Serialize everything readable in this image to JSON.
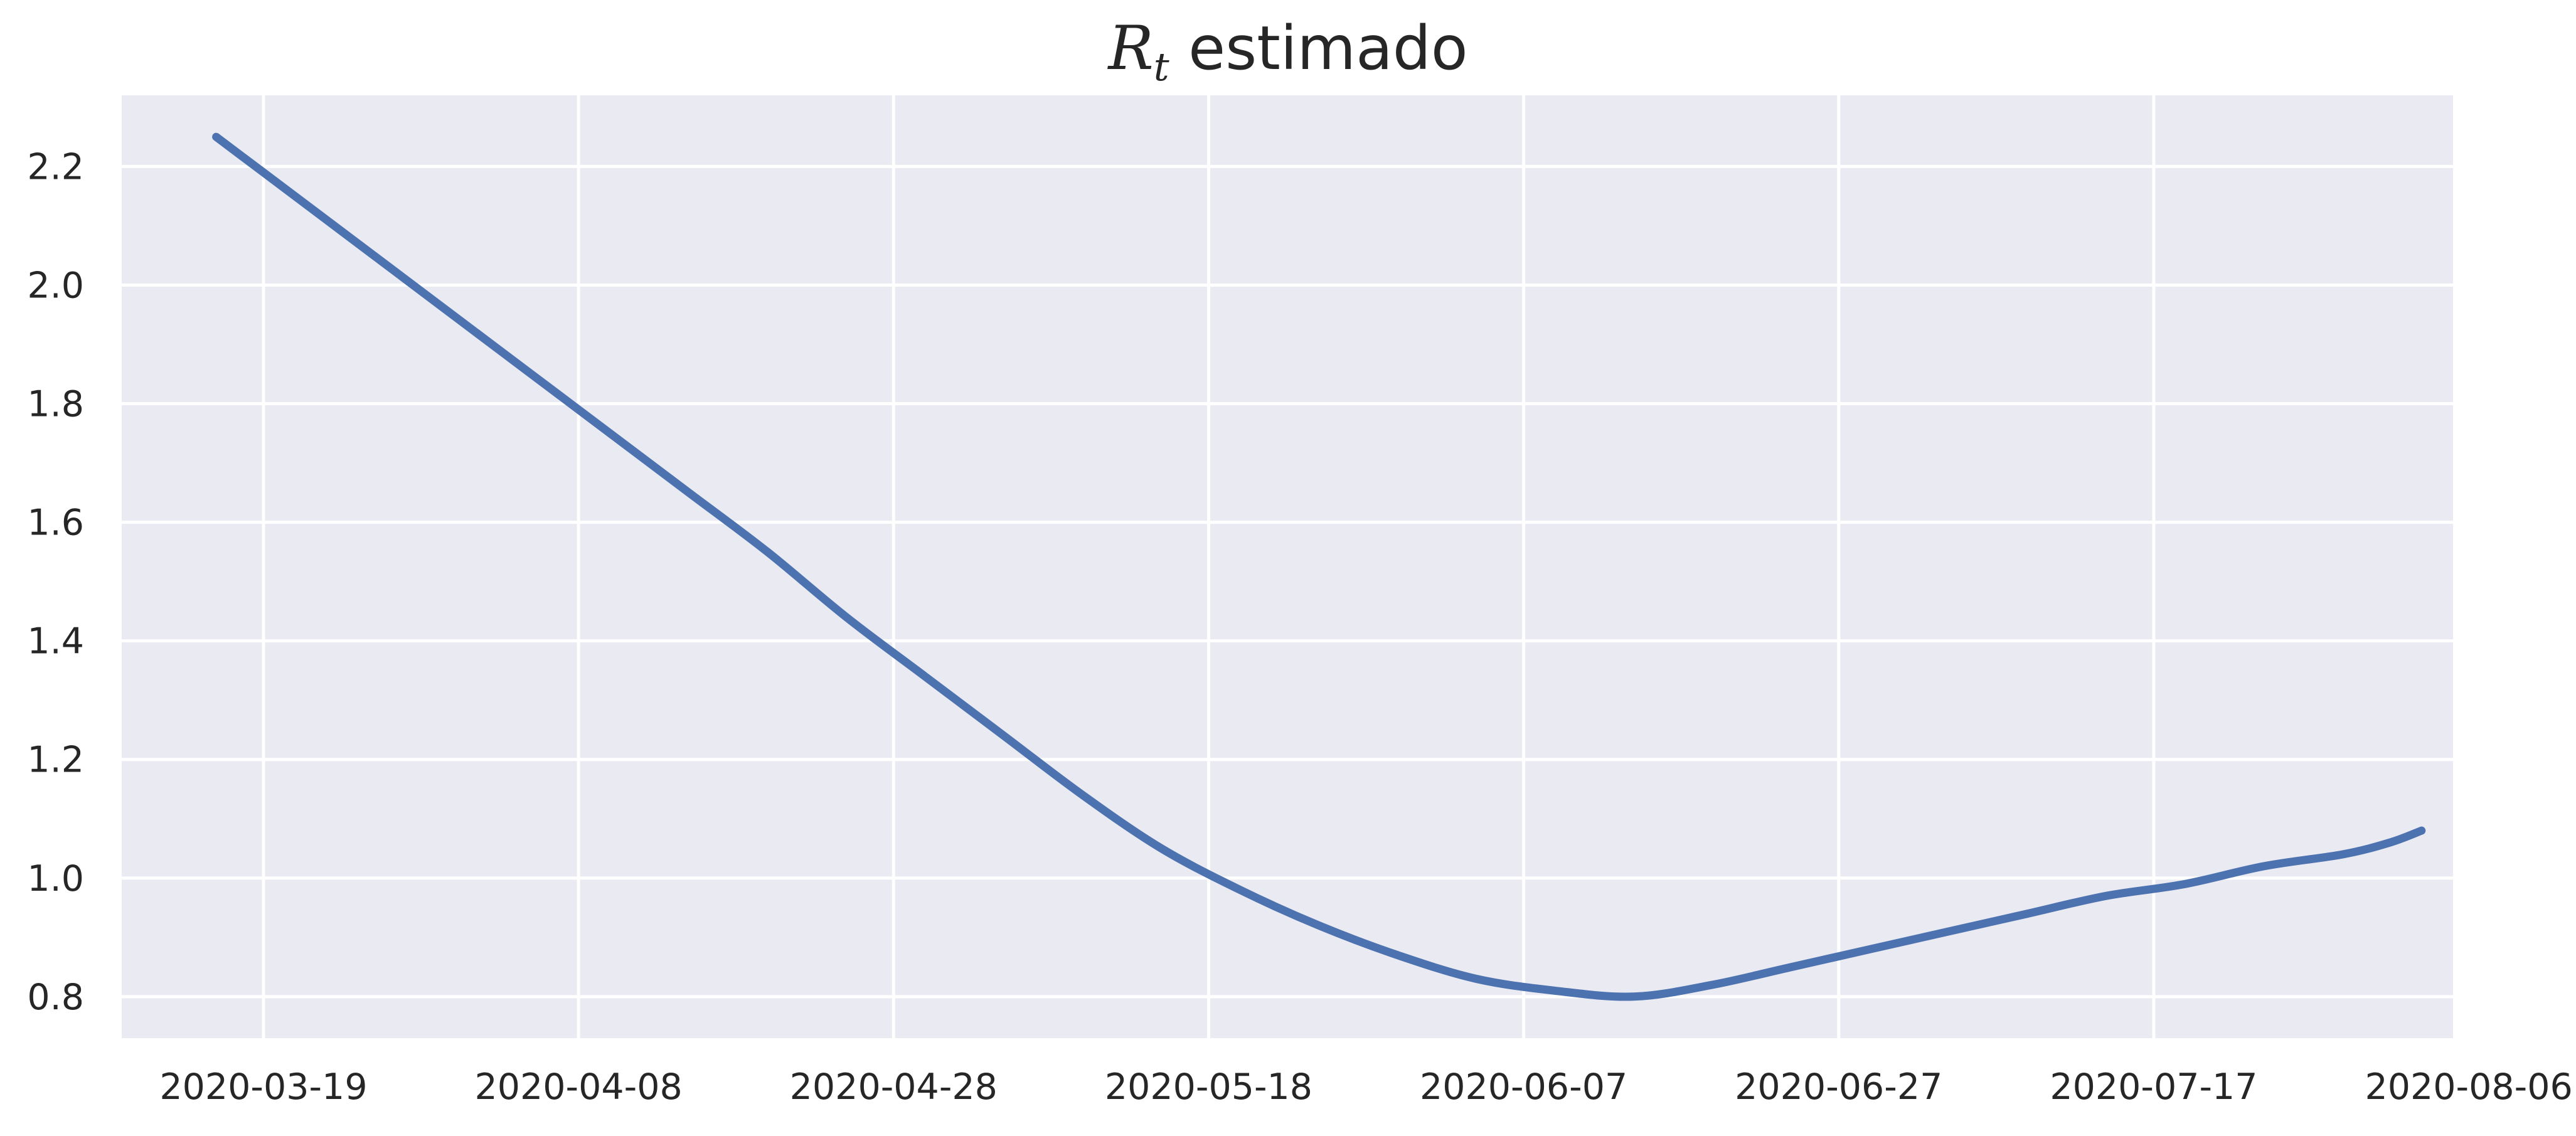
{
  "chart_data": {
    "type": "line",
    "title": {
      "symbol": "R",
      "subscript": "t",
      "text": " estimado"
    },
    "xlabel": "",
    "ylabel": "",
    "x_axis": {
      "type": "date",
      "range": [
        "2020-03-10",
        "2020-08-05"
      ],
      "ticks": [
        "2020-03-19",
        "2020-04-08",
        "2020-04-28",
        "2020-05-18",
        "2020-06-07",
        "2020-06-27",
        "2020-07-17",
        "2020-08-06"
      ]
    },
    "y_axis": {
      "range": [
        0.73,
        2.32
      ],
      "ticks": [
        0.8,
        1.0,
        1.2,
        1.4,
        1.6,
        1.8,
        2.0,
        2.2
      ]
    },
    "grid": true,
    "legend": false,
    "background_color": "#eaeaf2",
    "grid_color": "#ffffff",
    "series": [
      {
        "color": "#4c72b0",
        "points": [
          {
            "x": "2020-03-16",
            "y": 2.25
          },
          {
            "x": "2020-03-21",
            "y": 2.15
          },
          {
            "x": "2020-03-26",
            "y": 2.05
          },
          {
            "x": "2020-03-31",
            "y": 1.95
          },
          {
            "x": "2020-04-05",
            "y": 1.85
          },
          {
            "x": "2020-04-10",
            "y": 1.75
          },
          {
            "x": "2020-04-15",
            "y": 1.65
          },
          {
            "x": "2020-04-20",
            "y": 1.55
          },
          {
            "x": "2020-04-25",
            "y": 1.44
          },
          {
            "x": "2020-04-30",
            "y": 1.34
          },
          {
            "x": "2020-05-05",
            "y": 1.24
          },
          {
            "x": "2020-05-10",
            "y": 1.14
          },
          {
            "x": "2020-05-15",
            "y": 1.05
          },
          {
            "x": "2020-05-20",
            "y": 0.98
          },
          {
            "x": "2020-05-25",
            "y": 0.92
          },
          {
            "x": "2020-05-30",
            "y": 0.87
          },
          {
            "x": "2020-06-04",
            "y": 0.83
          },
          {
            "x": "2020-06-09",
            "y": 0.81
          },
          {
            "x": "2020-06-14",
            "y": 0.8
          },
          {
            "x": "2020-06-19",
            "y": 0.82
          },
          {
            "x": "2020-06-24",
            "y": 0.85
          },
          {
            "x": "2020-06-29",
            "y": 0.88
          },
          {
            "x": "2020-07-04",
            "y": 0.91
          },
          {
            "x": "2020-07-09",
            "y": 0.94
          },
          {
            "x": "2020-07-14",
            "y": 0.97
          },
          {
            "x": "2020-07-19",
            "y": 0.99
          },
          {
            "x": "2020-07-24",
            "y": 1.02
          },
          {
            "x": "2020-07-29",
            "y": 1.04
          },
          {
            "x": "2020-08-01",
            "y": 1.06
          },
          {
            "x": "2020-08-03",
            "y": 1.08
          }
        ]
      }
    ]
  }
}
